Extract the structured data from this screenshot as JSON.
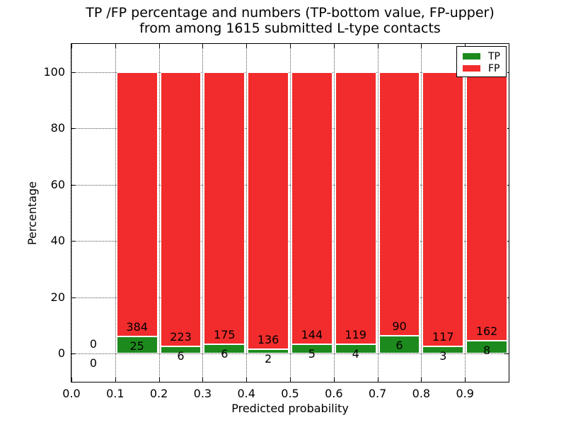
{
  "chart_data": {
    "type": "bar",
    "stacked": true,
    "title_line1": "TP /FP percentage and numbers (TP-bottom value, FP-upper)",
    "title_line2": "from among 1615 submitted L-type contacts",
    "xlabel": "Predicted probability",
    "ylabel": "Percentage",
    "xlim": [
      0.0,
      1.0
    ],
    "ylim": [
      -10,
      110
    ],
    "grid": "dotted",
    "bar_bin_width": 0.1,
    "xticks": [
      {
        "value": 0.0,
        "label": "0.0"
      },
      {
        "value": 0.1,
        "label": "0.1"
      },
      {
        "value": 0.2,
        "label": "0.2"
      },
      {
        "value": 0.3,
        "label": "0.3"
      },
      {
        "value": 0.4,
        "label": "0.4"
      },
      {
        "value": 0.5,
        "label": "0.5"
      },
      {
        "value": 0.6,
        "label": "0.6"
      },
      {
        "value": 0.7,
        "label": "0.7"
      },
      {
        "value": 0.8,
        "label": "0.8"
      },
      {
        "value": 0.9,
        "label": "0.9"
      }
    ],
    "yticks": [
      {
        "value": 0,
        "label": "0"
      },
      {
        "value": 20,
        "label": "20"
      },
      {
        "value": 40,
        "label": "40"
      },
      {
        "value": 60,
        "label": "60"
      },
      {
        "value": 80,
        "label": "80"
      },
      {
        "value": 100,
        "label": "100"
      }
    ],
    "colors": {
      "tp": "#1d8a1d",
      "fp": "#f22c2c"
    },
    "legend": {
      "position": "upper right",
      "entries": [
        {
          "label": "TP",
          "color": "#1d8a1d"
        },
        {
          "label": "FP",
          "color": "#f22c2c"
        }
      ]
    },
    "bins": [
      {
        "start": 0.0,
        "end": 0.1,
        "tp": 0,
        "fp": 0,
        "tp_pct": 0.0,
        "fp_pct": 0.0
      },
      {
        "start": 0.1,
        "end": 0.2,
        "tp": 25,
        "fp": 384,
        "tp_pct": 6.11,
        "fp_pct": 93.89
      },
      {
        "start": 0.2,
        "end": 0.3,
        "tp": 6,
        "fp": 223,
        "tp_pct": 2.62,
        "fp_pct": 97.38
      },
      {
        "start": 0.3,
        "end": 0.4,
        "tp": 6,
        "fp": 175,
        "tp_pct": 3.31,
        "fp_pct": 96.69
      },
      {
        "start": 0.4,
        "end": 0.5,
        "tp": 2,
        "fp": 136,
        "tp_pct": 1.45,
        "fp_pct": 98.55
      },
      {
        "start": 0.5,
        "end": 0.6,
        "tp": 5,
        "fp": 144,
        "tp_pct": 3.36,
        "fp_pct": 96.64
      },
      {
        "start": 0.6,
        "end": 0.7,
        "tp": 4,
        "fp": 119,
        "tp_pct": 3.25,
        "fp_pct": 96.75
      },
      {
        "start": 0.7,
        "end": 0.8,
        "tp": 6,
        "fp": 90,
        "tp_pct": 6.25,
        "fp_pct": 93.75
      },
      {
        "start": 0.8,
        "end": 0.9,
        "tp": 3,
        "fp": 117,
        "tp_pct": 2.5,
        "fp_pct": 97.5
      },
      {
        "start": 0.9,
        "end": 1.0,
        "tp": 8,
        "fp": 162,
        "tp_pct": 4.71,
        "fp_pct": 95.29
      }
    ],
    "total_submitted": 1615
  }
}
